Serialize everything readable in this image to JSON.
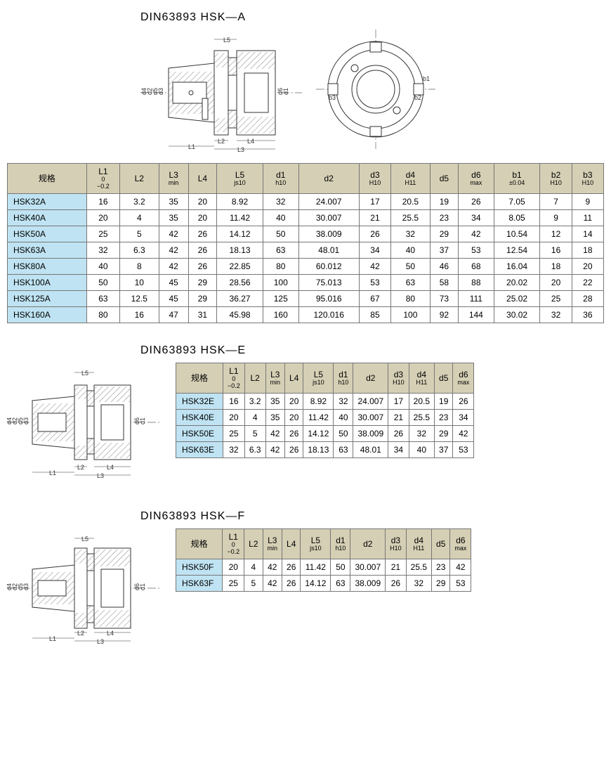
{
  "sections": {
    "a": {
      "title": "DIN63893 HSK—A"
    },
    "e": {
      "title": "DIN63893 HSK—E"
    },
    "f": {
      "title": "DIN63893 HSK—F"
    }
  },
  "headers": {
    "spec": "规格",
    "L1": "L1",
    "L1_tol_top": "0",
    "L1_tol_bot": "−0.2",
    "L2": "L2",
    "L3": "L3",
    "L3_sub": "min",
    "L4": "L4",
    "L5": "L5",
    "L5_sub": "js10",
    "d1": "d1",
    "d1_sub": "h10",
    "d2": "d2",
    "d3": "d3",
    "d3_sub": "H10",
    "d4": "d4",
    "d4_sub": "H11",
    "d5": "d5",
    "d6": "d6",
    "d6_sub": "max",
    "b1": "b1",
    "b1_sub": "±0.04",
    "b2": "b2",
    "b2_sub": "H10",
    "b3": "b3",
    "b3_sub": "H10"
  },
  "tableA": [
    {
      "spec": "HSK32A",
      "L1": "16",
      "L2": "3.2",
      "L3": "35",
      "L4": "20",
      "L5": "8.92",
      "d1": "32",
      "d2": "24.007",
      "d3": "17",
      "d4": "20.5",
      "d5": "19",
      "d6": "26",
      "b1": "7.05",
      "b2": "7",
      "b3": "9"
    },
    {
      "spec": "HSK40A",
      "L1": "20",
      "L2": "4",
      "L3": "35",
      "L4": "20",
      "L5": "11.42",
      "d1": "40",
      "d2": "30.007",
      "d3": "21",
      "d4": "25.5",
      "d5": "23",
      "d6": "34",
      "b1": "8.05",
      "b2": "9",
      "b3": "11"
    },
    {
      "spec": "HSK50A",
      "L1": "25",
      "L2": "5",
      "L3": "42",
      "L4": "26",
      "L5": "14.12",
      "d1": "50",
      "d2": "38.009",
      "d3": "26",
      "d4": "32",
      "d5": "29",
      "d6": "42",
      "b1": "10.54",
      "b2": "12",
      "b3": "14"
    },
    {
      "spec": "HSK63A",
      "L1": "32",
      "L2": "6.3",
      "L3": "42",
      "L4": "26",
      "L5": "18.13",
      "d1": "63",
      "d2": "48.01",
      "d3": "34",
      "d4": "40",
      "d5": "37",
      "d6": "53",
      "b1": "12.54",
      "b2": "16",
      "b3": "18"
    },
    {
      "spec": "HSK80A",
      "L1": "40",
      "L2": "8",
      "L3": "42",
      "L4": "26",
      "L5": "22.85",
      "d1": "80",
      "d2": "60.012",
      "d3": "42",
      "d4": "50",
      "d5": "46",
      "d6": "68",
      "b1": "16.04",
      "b2": "18",
      "b3": "20"
    },
    {
      "spec": "HSK100A",
      "L1": "50",
      "L2": "10",
      "L3": "45",
      "L4": "29",
      "L5": "28.56",
      "d1": "100",
      "d2": "75.013",
      "d3": "53",
      "d4": "63",
      "d5": "58",
      "d6": "88",
      "b1": "20.02",
      "b2": "20",
      "b3": "22"
    },
    {
      "spec": "HSK125A",
      "L1": "63",
      "L2": "12.5",
      "L3": "45",
      "L4": "29",
      "L5": "36.27",
      "d1": "125",
      "d2": "95.016",
      "d3": "67",
      "d4": "80",
      "d5": "73",
      "d6": "111",
      "b1": "25.02",
      "b2": "25",
      "b3": "28"
    },
    {
      "spec": "HSK160A",
      "L1": "80",
      "L2": "16",
      "L3": "47",
      "L4": "31",
      "L5": "45.98",
      "d1": "160",
      "d2": "120.016",
      "d3": "85",
      "d4": "100",
      "d5": "92",
      "d6": "144",
      "b1": "30.02",
      "b2": "32",
      "b3": "36"
    }
  ],
  "tableE": [
    {
      "spec": "HSK32E",
      "L1": "16",
      "L2": "3.2",
      "L3": "35",
      "L4": "20",
      "L5": "8.92",
      "d1": "32",
      "d2": "24.007",
      "d3": "17",
      "d4": "20.5",
      "d5": "19",
      "d6": "26"
    },
    {
      "spec": "HSK40E",
      "L1": "20",
      "L2": "4",
      "L3": "35",
      "L4": "20",
      "L5": "11.42",
      "d1": "40",
      "d2": "30.007",
      "d3": "21",
      "d4": "25.5",
      "d5": "23",
      "d6": "34"
    },
    {
      "spec": "HSK50E",
      "L1": "25",
      "L2": "5",
      "L3": "42",
      "L4": "26",
      "L5": "14.12",
      "d1": "50",
      "d2": "38.009",
      "d3": "26",
      "d4": "32",
      "d5": "29",
      "d6": "42"
    },
    {
      "spec": "HSK63E",
      "L1": "32",
      "L2": "6.3",
      "L3": "42",
      "L4": "26",
      "L5": "18.13",
      "d1": "63",
      "d2": "48.01",
      "d3": "34",
      "d4": "40",
      "d5": "37",
      "d6": "53"
    }
  ],
  "tableF": [
    {
      "spec": "HSK50F",
      "L1": "20",
      "L2": "4",
      "L3": "42",
      "L4": "26",
      "L5": "11.42",
      "d1": "50",
      "d2": "30.007",
      "d3": "21",
      "d4": "25.5",
      "d5": "23",
      "d6": "42"
    },
    {
      "spec": "HSK63F",
      "L1": "25",
      "L2": "5",
      "L3": "42",
      "L4": "26",
      "L5": "14.12",
      "d1": "63",
      "d2": "38.009",
      "d3": "26",
      "d4": "32",
      "d5": "29",
      "d6": "53"
    }
  ],
  "diagram": {
    "labels": {
      "d1": "d1",
      "d2": "d2",
      "d3": "d3",
      "d4": "d4",
      "d5": "d5",
      "d6": "d6",
      "L1": "L1",
      "L2": "L2",
      "L3": "L3",
      "L4": "L4",
      "L5": "L5",
      "b1": "b1",
      "b2": "b2",
      "b3": "b3"
    },
    "colors": {
      "stroke": "#333333",
      "hatch": "#888888",
      "centerline": "#666666"
    }
  }
}
